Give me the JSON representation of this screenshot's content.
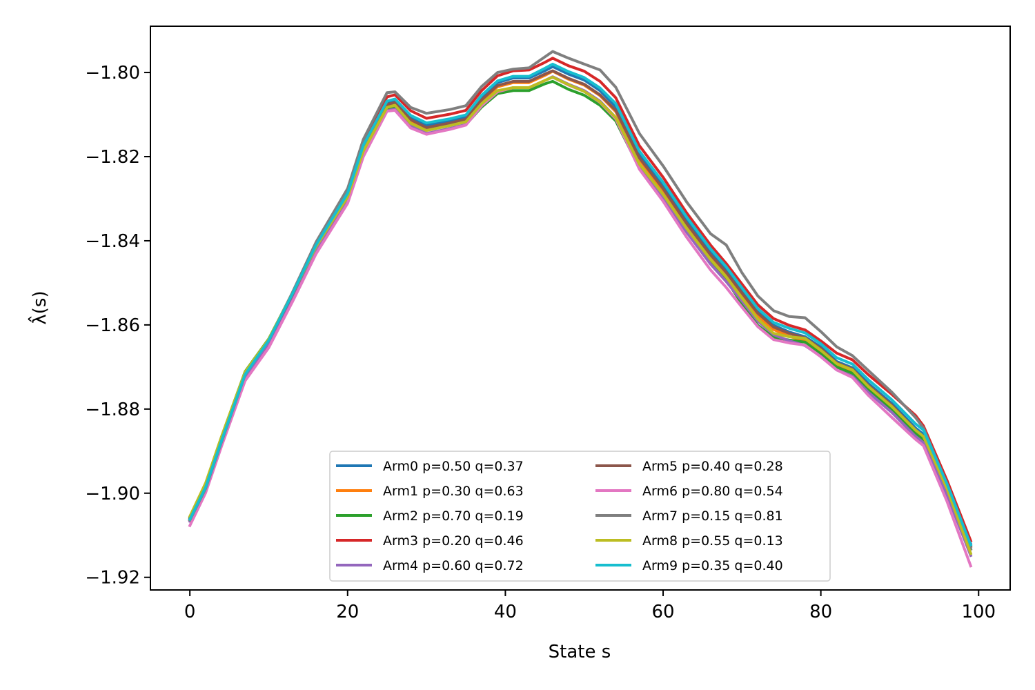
{
  "chart_data": {
    "type": "line",
    "xlabel": "State s",
    "ylabel": "λ̂(s)",
    "xlim": [
      -5,
      104
    ],
    "ylim": [
      -1.923,
      -1.789
    ],
    "xticks": [
      0,
      20,
      40,
      60,
      80,
      100
    ],
    "xtick_labels": [
      "0",
      "20",
      "40",
      "60",
      "80",
      "100"
    ],
    "yticks": [
      -1.8,
      -1.82,
      -1.84,
      -1.86,
      -1.88,
      -1.9,
      -1.92
    ],
    "ytick_labels": [
      "−1.80",
      "−1.82",
      "−1.84",
      "−1.86",
      "−1.88",
      "−1.90",
      "−1.92"
    ],
    "grid": false,
    "legend_position": "lower-center",
    "legend_columns": 2,
    "x": [
      0,
      2,
      4,
      7,
      10,
      13,
      16,
      20,
      22,
      25,
      26,
      28,
      30,
      33,
      35,
      37,
      39,
      41,
      43,
      45,
      46,
      48,
      50,
      52,
      54,
      57,
      60,
      63,
      66,
      68,
      70,
      72,
      74,
      76,
      78,
      80,
      82,
      84,
      86,
      89,
      92,
      93,
      96,
      99
    ],
    "series": [
      {
        "name": "Arm0 p=0.50 q=0.37",
        "color": "#1f77b4",
        "values": [
          -1.9062,
          -1.8985,
          -1.8875,
          -1.8718,
          -1.8638,
          -1.8528,
          -1.8412,
          -1.829,
          -1.8177,
          -1.8071,
          -1.8066,
          -1.8106,
          -1.8125,
          -1.8115,
          -1.8106,
          -1.8059,
          -1.8024,
          -1.8013,
          -1.8013,
          -1.7996,
          -1.7986,
          -1.8004,
          -1.8018,
          -1.8043,
          -1.8081,
          -1.8195,
          -1.8269,
          -1.8353,
          -1.8428,
          -1.8471,
          -1.852,
          -1.8568,
          -1.8601,
          -1.8617,
          -1.8628,
          -1.8653,
          -1.8687,
          -1.8702,
          -1.8739,
          -1.8787,
          -1.8845,
          -1.886,
          -1.8985,
          -1.912
        ]
      },
      {
        "name": "Arm1 p=0.30 q=0.63",
        "color": "#ff7f0e",
        "values": [
          -1.9064,
          -1.8988,
          -1.8878,
          -1.8722,
          -1.8642,
          -1.8533,
          -1.8418,
          -1.8297,
          -1.8185,
          -1.808,
          -1.8075,
          -1.8115,
          -1.8134,
          -1.8123,
          -1.8114,
          -1.8068,
          -1.8034,
          -1.8024,
          -1.8024,
          -1.8007,
          -1.7997,
          -1.8016,
          -1.803,
          -1.8055,
          -1.8093,
          -1.8207,
          -1.8281,
          -1.8364,
          -1.8439,
          -1.8482,
          -1.853,
          -1.8578,
          -1.8611,
          -1.8627,
          -1.8638,
          -1.8663,
          -1.8696,
          -1.8711,
          -1.8748,
          -1.8795,
          -1.8852,
          -1.8867,
          -1.899,
          -1.9125
        ]
      },
      {
        "name": "Arm2 p=0.70 q=0.19",
        "color": "#2ca02c",
        "values": [
          -1.9058,
          -1.8978,
          -1.8867,
          -1.8711,
          -1.8633,
          -1.8525,
          -1.8413,
          -1.8294,
          -1.8185,
          -1.8086,
          -1.8083,
          -1.8127,
          -1.8146,
          -1.8133,
          -1.8124,
          -1.8082,
          -1.805,
          -1.8043,
          -1.8043,
          -1.8027,
          -1.8021,
          -1.804,
          -1.8054,
          -1.8078,
          -1.8115,
          -1.8227,
          -1.8298,
          -1.8378,
          -1.8451,
          -1.8493,
          -1.855,
          -1.8601,
          -1.863,
          -1.8636,
          -1.8641,
          -1.8669,
          -1.87,
          -1.8715,
          -1.8753,
          -1.88,
          -1.8857,
          -1.8872,
          -1.8995,
          -1.9132
        ]
      },
      {
        "name": "Arm3 p=0.20 q=0.46",
        "color": "#d62728",
        "values": [
          -1.9063,
          -1.8989,
          -1.8879,
          -1.8719,
          -1.8636,
          -1.8524,
          -1.8405,
          -1.828,
          -1.8165,
          -1.8058,
          -1.8053,
          -1.8091,
          -1.8109,
          -1.8099,
          -1.809,
          -1.8043,
          -1.8008,
          -1.7996,
          -1.7994,
          -1.7976,
          -1.7966,
          -1.7984,
          -1.7997,
          -1.8021,
          -1.806,
          -1.8174,
          -1.8249,
          -1.8334,
          -1.841,
          -1.8454,
          -1.8503,
          -1.8552,
          -1.8585,
          -1.8601,
          -1.8612,
          -1.8638,
          -1.8667,
          -1.8683,
          -1.8718,
          -1.8765,
          -1.8815,
          -1.884,
          -1.897,
          -1.9113
        ]
      },
      {
        "name": "Arm4 p=0.60 q=0.72",
        "color": "#9467bd",
        "values": [
          -1.9067,
          -1.899,
          -1.8881,
          -1.8727,
          -1.8648,
          -1.8539,
          -1.8426,
          -1.8306,
          -1.8195,
          -1.8091,
          -1.8087,
          -1.8128,
          -1.8145,
          -1.8133,
          -1.8124,
          -1.8077,
          -1.8045,
          -1.8036,
          -1.8036,
          -1.8019,
          -1.801,
          -1.8028,
          -1.8043,
          -1.8068,
          -1.8107,
          -1.8223,
          -1.8297,
          -1.838,
          -1.8455,
          -1.8497,
          -1.8543,
          -1.8591,
          -1.8623,
          -1.8638,
          -1.8649,
          -1.8675,
          -1.8707,
          -1.8722,
          -1.876,
          -1.8808,
          -1.8865,
          -1.888,
          -1.9005,
          -1.9148
        ]
      },
      {
        "name": "Arm5 p=0.40 q=0.28",
        "color": "#8c564b",
        "values": [
          -1.906,
          -1.8983,
          -1.8873,
          -1.8716,
          -1.8637,
          -1.8528,
          -1.8413,
          -1.8292,
          -1.818,
          -1.8076,
          -1.8071,
          -1.8112,
          -1.8131,
          -1.812,
          -1.8111,
          -1.8065,
          -1.8031,
          -1.8021,
          -1.8021,
          -1.8004,
          -1.7996,
          -1.8014,
          -1.8028,
          -1.8053,
          -1.809,
          -1.8203,
          -1.8276,
          -1.8359,
          -1.8433,
          -1.8475,
          -1.8524,
          -1.8572,
          -1.8605,
          -1.862,
          -1.8631,
          -1.8656,
          -1.869,
          -1.8705,
          -1.8743,
          -1.8791,
          -1.885,
          -1.8865,
          -1.899,
          -1.9127
        ]
      },
      {
        "name": "Arm6 p=0.80 q=0.54",
        "color": "#e377c2",
        "values": [
          -1.9077,
          -1.8999,
          -1.8889,
          -1.8733,
          -1.8654,
          -1.8545,
          -1.8431,
          -1.8311,
          -1.82,
          -1.8092,
          -1.809,
          -1.8132,
          -1.8147,
          -1.8135,
          -1.8125,
          -1.8079,
          -1.8046,
          -1.8036,
          -1.8036,
          -1.8019,
          -1.8011,
          -1.803,
          -1.8045,
          -1.8071,
          -1.811,
          -1.823,
          -1.8306,
          -1.8392,
          -1.8469,
          -1.8511,
          -1.8558,
          -1.8604,
          -1.8635,
          -1.8643,
          -1.8648,
          -1.8676,
          -1.8707,
          -1.8725,
          -1.8767,
          -1.882,
          -1.8872,
          -1.8887,
          -1.902,
          -1.9173
        ]
      },
      {
        "name": "Arm7 p=0.15 q=0.81",
        "color": "#7f7f7f",
        "values": [
          -1.9064,
          -1.8989,
          -1.8879,
          -1.8719,
          -1.8636,
          -1.8523,
          -1.8403,
          -1.8276,
          -1.8159,
          -1.8048,
          -1.8046,
          -1.8083,
          -1.8097,
          -1.8088,
          -1.8079,
          -1.8033,
          -1.8,
          -1.7992,
          -1.7989,
          -1.7963,
          -1.795,
          -1.7966,
          -1.798,
          -1.7994,
          -1.8035,
          -1.8145,
          -1.8222,
          -1.8308,
          -1.8383,
          -1.841,
          -1.8476,
          -1.8531,
          -1.8566,
          -1.858,
          -1.8583,
          -1.8616,
          -1.8652,
          -1.8673,
          -1.8708,
          -1.876,
          -1.882,
          -1.8845,
          -1.898,
          -1.9133
        ]
      },
      {
        "name": "Arm8 p=0.55 q=0.13",
        "color": "#bcbd22",
        "values": [
          -1.9055,
          -1.8976,
          -1.8866,
          -1.8712,
          -1.8634,
          -1.8526,
          -1.8414,
          -1.8296,
          -1.8187,
          -1.8083,
          -1.8078,
          -1.8121,
          -1.8138,
          -1.8126,
          -1.8117,
          -1.8074,
          -1.8043,
          -1.8036,
          -1.8036,
          -1.8019,
          -1.8011,
          -1.8029,
          -1.8045,
          -1.807,
          -1.8107,
          -1.8218,
          -1.829,
          -1.8371,
          -1.8444,
          -1.8486,
          -1.8536,
          -1.8586,
          -1.862,
          -1.8628,
          -1.8632,
          -1.866,
          -1.8692,
          -1.8707,
          -1.8746,
          -1.8794,
          -1.885,
          -1.8865,
          -1.899,
          -1.9143
        ]
      },
      {
        "name": "Arm9 p=0.35 q=0.40",
        "color": "#17becf",
        "values": [
          -1.9062,
          -1.8986,
          -1.8876,
          -1.8718,
          -1.8637,
          -1.8526,
          -1.841,
          -1.8287,
          -1.8173,
          -1.8068,
          -1.8063,
          -1.8102,
          -1.812,
          -1.811,
          -1.8101,
          -1.8054,
          -1.802,
          -1.8009,
          -1.8009,
          -1.799,
          -1.798,
          -1.7998,
          -1.8012,
          -1.8037,
          -1.8074,
          -1.8187,
          -1.8261,
          -1.8344,
          -1.8419,
          -1.8462,
          -1.8512,
          -1.8561,
          -1.8594,
          -1.8608,
          -1.8619,
          -1.8645,
          -1.8678,
          -1.8693,
          -1.873,
          -1.8778,
          -1.8835,
          -1.885,
          -1.8978,
          -1.9123
        ]
      }
    ]
  }
}
